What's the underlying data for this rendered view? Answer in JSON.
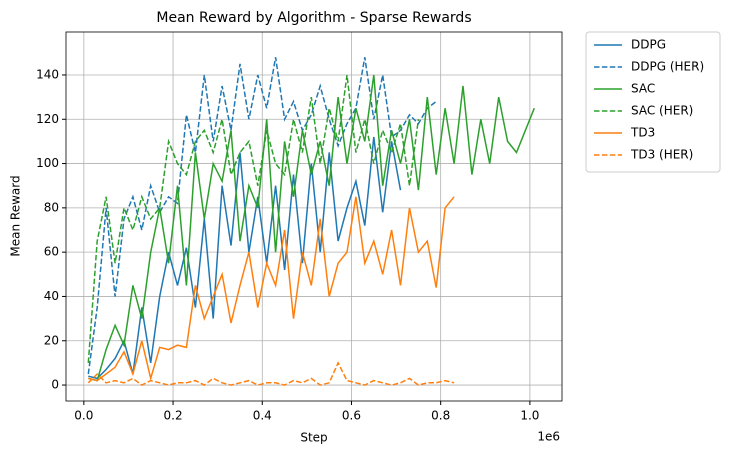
{
  "chart_data": {
    "type": "line",
    "title": "Mean Reward by Algorithm - Sparse Rewards",
    "x_label": "Step",
    "y_label": "Mean Reward",
    "x_offset_label": "1e6",
    "x": [
      10000,
      30000,
      50000,
      70000,
      90000,
      110000,
      130000,
      150000,
      170000,
      190000,
      210000,
      230000,
      250000,
      270000,
      290000,
      310000,
      330000,
      350000,
      370000,
      390000,
      410000,
      430000,
      450000,
      470000,
      490000,
      510000,
      530000,
      550000,
      570000,
      590000,
      610000,
      630000,
      650000,
      670000,
      690000,
      710000,
      730000,
      750000,
      770000,
      790000,
      810000,
      830000,
      850000,
      870000,
      890000,
      910000,
      930000,
      950000,
      970000,
      990000,
      1010000
    ],
    "xlim": [
      -40000,
      1072000
    ],
    "xticks": [
      {
        "value": 0,
        "label": "0.0"
      },
      {
        "value": 200000,
        "label": "0.2"
      },
      {
        "value": 400000,
        "label": "0.4"
      },
      {
        "value": 600000,
        "label": "0.6"
      },
      {
        "value": 800000,
        "label": "0.8"
      },
      {
        "value": 1000000,
        "label": "1.0"
      }
    ],
    "ylim": [
      -7.2,
      159.4
    ],
    "yticks": [
      0,
      20,
      40,
      60,
      80,
      100,
      120,
      140
    ],
    "grid": true,
    "legend": "outside-right",
    "series": [
      {
        "name": "DDPG",
        "color": "#1f77b4",
        "dashed": false,
        "values": [
          4,
          3,
          7,
          12,
          20,
          5,
          35,
          10,
          40,
          60,
          45,
          62,
          35,
          75,
          30,
          90,
          63,
          105,
          60,
          85,
          55,
          90,
          52,
          95,
          55,
          100,
          60,
          105,
          65,
          80,
          92,
          72,
          112,
          78,
          110,
          88,
          null,
          null,
          null,
          null,
          null,
          null,
          null,
          null,
          null,
          null,
          null,
          null,
          null,
          null,
          null
        ]
      },
      {
        "name": "DDPG (HER)",
        "color": "#1f77b4",
        "dashed": true,
        "values": [
          5,
          35,
          80,
          40,
          75,
          85,
          70,
          90,
          78,
          85,
          82,
          122,
          105,
          140,
          110,
          135,
          115,
          145,
          120,
          140,
          125,
          148,
          120,
          128,
          115,
          122,
          135,
          120,
          108,
          118,
          125,
          148,
          120,
          140,
          112,
          115,
          122,
          118,
          125,
          128,
          null,
          null,
          null,
          null,
          null,
          null,
          null,
          null,
          null,
          null,
          null
        ]
      },
      {
        "name": "SAC",
        "color": "#2ca02c",
        "dashed": false,
        "values": [
          3,
          2,
          16,
          27,
          18,
          45,
          30,
          60,
          80,
          55,
          90,
          45,
          105,
          75,
          100,
          92,
          115,
          65,
          90,
          80,
          120,
          60,
          110,
          85,
          115,
          95,
          110,
          90,
          130,
          100,
          125,
          110,
          140,
          90,
          115,
          100,
          120,
          88,
          130,
          95,
          125,
          100,
          135,
          95,
          120,
          100,
          130,
          110,
          105,
          115,
          125
        ]
      },
      {
        "name": "SAC (HER)",
        "color": "#2ca02c",
        "dashed": true,
        "values": [
          10,
          65,
          85,
          55,
          80,
          70,
          85,
          75,
          80,
          110,
          100,
          95,
          110,
          115,
          105,
          120,
          95,
          105,
          110,
          90,
          115,
          100,
          95,
          120,
          105,
          130,
          100,
          125,
          110,
          140,
          105,
          120,
          100,
          115,
          105,
          118,
          90,
          120,
          null,
          null,
          null,
          null,
          null,
          null,
          null,
          null,
          null,
          null,
          null,
          null,
          null
        ]
      },
      {
        "name": "TD3",
        "color": "#ff7f0e",
        "dashed": false,
        "values": [
          3,
          2,
          5,
          8,
          15,
          5,
          20,
          3,
          17,
          16,
          18,
          17,
          45,
          30,
          40,
          50,
          28,
          45,
          60,
          35,
          55,
          45,
          70,
          30,
          60,
          45,
          75,
          40,
          55,
          60,
          85,
          55,
          65,
          50,
          70,
          45,
          80,
          60,
          65,
          44,
          80,
          85,
          null,
          null,
          null,
          null,
          null,
          null,
          null,
          null,
          null
        ]
      },
      {
        "name": "TD3 (HER)",
        "color": "#ff7f0e",
        "dashed": true,
        "values": [
          1,
          5,
          1,
          2,
          1,
          3,
          0,
          2,
          1,
          0,
          1,
          1,
          2,
          0,
          3,
          1,
          0,
          1,
          2,
          0,
          1,
          1,
          0,
          2,
          1,
          3,
          0,
          1,
          10,
          2,
          1,
          0,
          2,
          1,
          0,
          1,
          3,
          0,
          1,
          1,
          2,
          1,
          null,
          null,
          null,
          null,
          null,
          null,
          null,
          null,
          null
        ]
      }
    ]
  }
}
